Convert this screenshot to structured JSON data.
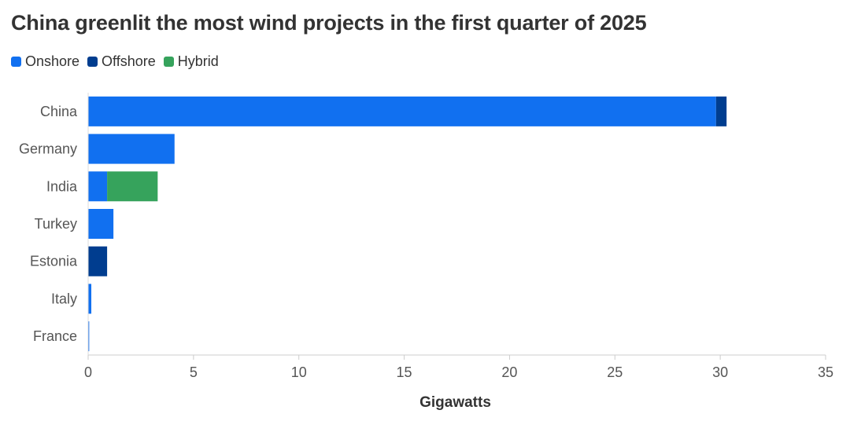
{
  "chart_data": {
    "type": "bar",
    "orientation": "horizontal",
    "stacked": true,
    "title": "China greenlit the most wind projects in the first quarter of 2025",
    "xlabel": "Gigawatts",
    "ylabel": "",
    "xlim": [
      0,
      35
    ],
    "xticks": [
      0,
      5,
      10,
      15,
      20,
      25,
      30,
      35
    ],
    "categories": [
      "China",
      "Germany",
      "India",
      "Turkey",
      "Estonia",
      "Italy",
      "France"
    ],
    "series": [
      {
        "name": "Onshore",
        "color": "#1170f0",
        "values": [
          29.8,
          4.1,
          0.9,
          1.2,
          0,
          0.15,
          0.05
        ]
      },
      {
        "name": "Offshore",
        "color": "#003d8f",
        "values": [
          0.5,
          0,
          0,
          0,
          0.9,
          0,
          0
        ]
      },
      {
        "name": "Hybrid",
        "color": "#36a35c",
        "values": [
          0,
          0,
          2.4,
          0,
          0,
          0,
          0
        ]
      }
    ],
    "legend_position": "top-left",
    "grid": false
  }
}
